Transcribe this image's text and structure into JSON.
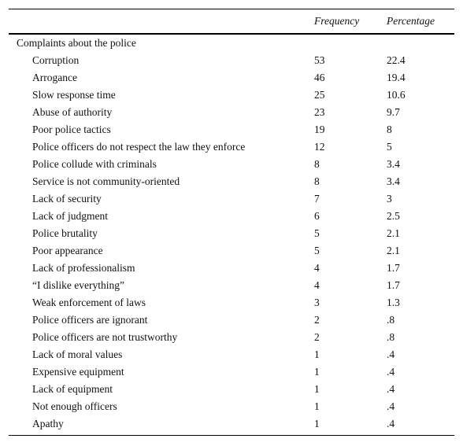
{
  "table": {
    "header": [
      "Frequency",
      "Percentage"
    ],
    "section": "Complaints about the police",
    "rows": [
      [
        "Corruption",
        "53",
        "22.4"
      ],
      [
        "Arrogance",
        "46",
        "19.4"
      ],
      [
        "Slow response time",
        "25",
        "10.6"
      ],
      [
        "Abuse of authority",
        "23",
        "9.7"
      ],
      [
        "Poor police tactics",
        "19",
        "8"
      ],
      [
        "Police officers do not respect the law they enforce",
        "12",
        "5"
      ],
      [
        "Police collude with criminals",
        "8",
        "3.4"
      ],
      [
        "Service is not community-oriented",
        "8",
        "3.4"
      ],
      [
        "Lack of security",
        "7",
        "3"
      ],
      [
        "Lack of judgment",
        "6",
        "2.5"
      ],
      [
        "Police brutality",
        "5",
        "2.1"
      ],
      [
        "Poor appearance",
        "5",
        "2.1"
      ],
      [
        "Lack of professionalism",
        "4",
        "1.7"
      ],
      [
        "“I dislike everything”",
        "4",
        "1.7"
      ],
      [
        "Weak enforcement of laws",
        "3",
        "1.3"
      ],
      [
        "Police officers are ignorant",
        "2",
        ".8"
      ],
      [
        "Police officers are not trustworthy",
        "2",
        ".8"
      ],
      [
        "Lack of moral values",
        "1",
        ".4"
      ],
      [
        "Expensive equipment",
        "1",
        ".4"
      ],
      [
        "Lack of equipment",
        "1",
        ".4"
      ],
      [
        "Not enough officers",
        "1",
        ".4"
      ],
      [
        "Apathy",
        "1",
        ".4"
      ]
    ]
  }
}
